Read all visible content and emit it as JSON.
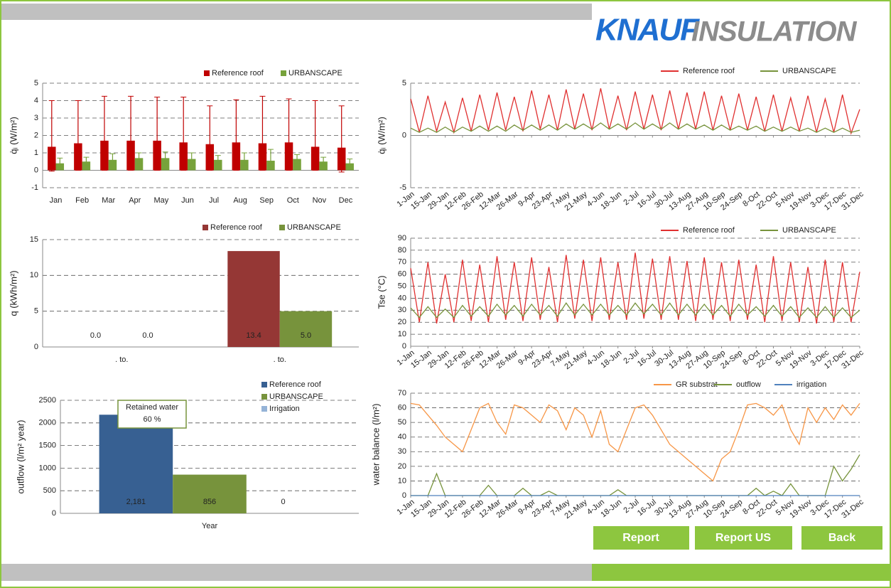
{
  "logo": {
    "brand": "KNAUF",
    "product": "INSULATION"
  },
  "buttons": [
    "Report",
    "Report US",
    "Back"
  ],
  "chart_data": [
    {
      "type": "bar",
      "y_label": "q̇ᵢ (W/m²)",
      "ylim": [
        -1,
        5
      ],
      "yticks": [
        -1,
        0,
        1,
        2,
        3,
        4,
        5
      ],
      "grid": true,
      "legend": "top-right",
      "categories": [
        "Jan",
        "Feb",
        "Mar",
        "Apr",
        "May",
        "Jun",
        "Jul",
        "Aug",
        "Sep",
        "Oct",
        "Nov",
        "Dec"
      ],
      "series": [
        {
          "name": "Reference roof",
          "color": "#c00000",
          "values": [
            1.35,
            1.55,
            1.7,
            1.7,
            1.7,
            1.6,
            1.5,
            1.6,
            1.55,
            1.6,
            1.35,
            1.3
          ],
          "err_plus": [
            2.65,
            2.45,
            2.55,
            2.55,
            2.5,
            2.6,
            2.2,
            2.45,
            2.7,
            2.5,
            2.65,
            2.4
          ],
          "err_minus": [
            1.4,
            1.55,
            1.7,
            1.7,
            1.7,
            1.6,
            1.5,
            1.6,
            1.55,
            1.6,
            1.35,
            1.4
          ]
        },
        {
          "name": "URBANSCAPE",
          "color": "#77a23b",
          "values": [
            0.4,
            0.5,
            0.6,
            0.7,
            0.7,
            0.65,
            0.6,
            0.6,
            0.55,
            0.65,
            0.5,
            0.4
          ],
          "err_plus": [
            0.3,
            0.25,
            0.35,
            0.3,
            0.35,
            0.35,
            0.25,
            0.4,
            0.65,
            0.25,
            0.25,
            0.25
          ],
          "err_minus": [
            0.2,
            0.2,
            0.25,
            0.3,
            0.3,
            0.25,
            0.2,
            0.3,
            0.35,
            0.25,
            0.2,
            0.2
          ]
        }
      ]
    },
    {
      "type": "bar",
      "y_label": "q (kWh/m²)",
      "ylim": [
        0,
        15
      ],
      "yticks": [
        0,
        5,
        10,
        15
      ],
      "grid": true,
      "legend": "top-right",
      "categories": [
        ". to.",
        ". to."
      ],
      "series": [
        {
          "name": "Reference roof",
          "color": "#953735",
          "values": [
            0.0,
            13.4
          ],
          "value_labels": [
            "0.0",
            "13.4"
          ]
        },
        {
          "name": "URBANSCAPE",
          "color": "#77933c",
          "values": [
            0.0,
            5.0
          ],
          "value_labels": [
            "0.0",
            "5.0"
          ]
        }
      ]
    },
    {
      "type": "bar",
      "y_label": "outflow (l/m² year)",
      "ylim": [
        0,
        2500
      ],
      "yticks": [
        0,
        500,
        1000,
        1500,
        2000,
        2500
      ],
      "grid": true,
      "legend": "right",
      "categories": [
        "Year"
      ],
      "annotation": {
        "title": "Retained water",
        "value": "60 %"
      },
      "series": [
        {
          "name": "Reference roof",
          "color": "#376092",
          "values": [
            2181
          ],
          "value_labels": [
            "2,181"
          ]
        },
        {
          "name": "URBANSCAPE",
          "color": "#77933c",
          "values": [
            856
          ],
          "value_labels": [
            "856"
          ]
        },
        {
          "name": "Irrigation",
          "color": "#95b3d7",
          "values": [
            0
          ],
          "value_labels": [
            "0"
          ]
        }
      ]
    },
    {
      "type": "line",
      "y_label": "q̇ᵢ (W/m²)",
      "ylim": [
        -5,
        5
      ],
      "yticks": [
        -5,
        0,
        5
      ],
      "grid": true,
      "legend": "top-right",
      "xlim": [
        1,
        365
      ],
      "xticks": [
        {
          "value": 1,
          "label": "1-Jan"
        },
        {
          "value": 15,
          "label": "15-Jan"
        },
        {
          "value": 29,
          "label": "29-Jan"
        },
        {
          "value": 43,
          "label": "12-Feb"
        },
        {
          "value": 57,
          "label": "26-Feb"
        },
        {
          "value": 71,
          "label": "12-Mar"
        },
        {
          "value": 85,
          "label": "26-Mar"
        },
        {
          "value": 99,
          "label": "9-Apr"
        },
        {
          "value": 113,
          "label": "23-Apr"
        },
        {
          "value": 127,
          "label": "7-May"
        },
        {
          "value": 141,
          "label": "21-May"
        },
        {
          "value": 155,
          "label": "4-Jun"
        },
        {
          "value": 169,
          "label": "18-Jun"
        },
        {
          "value": 183,
          "label": "2-Jul"
        },
        {
          "value": 197,
          "label": "16-Jul"
        },
        {
          "value": 211,
          "label": "30-Jul"
        },
        {
          "value": 225,
          "label": "13-Aug"
        },
        {
          "value": 239,
          "label": "27-Aug"
        },
        {
          "value": 253,
          "label": "10-Sep"
        },
        {
          "value": 267,
          "label": "24-Sep"
        },
        {
          "value": 281,
          "label": "8-Oct"
        },
        {
          "value": 295,
          "label": "22-Oct"
        },
        {
          "value": 309,
          "label": "5-Nov"
        },
        {
          "value": 323,
          "label": "19-Nov"
        },
        {
          "value": 337,
          "label": "3-Dec"
        },
        {
          "value": 351,
          "label": "17-Dec"
        },
        {
          "value": 365,
          "label": "31-Dec"
        }
      ],
      "x": [
        1,
        8,
        15,
        22,
        29,
        36,
        43,
        50,
        57,
        64,
        71,
        78,
        85,
        92,
        99,
        106,
        113,
        120,
        127,
        134,
        141,
        148,
        155,
        162,
        169,
        176,
        183,
        190,
        197,
        204,
        211,
        218,
        225,
        232,
        239,
        246,
        253,
        260,
        267,
        274,
        281,
        288,
        295,
        302,
        309,
        316,
        323,
        330,
        337,
        344,
        351,
        358,
        365
      ],
      "series": [
        {
          "name": "Reference roof",
          "color": "#e03030",
          "values": [
            3.5,
            0.3,
            3.8,
            0.4,
            3.2,
            0.3,
            3.6,
            0.4,
            3.9,
            0.5,
            4.1,
            0.5,
            3.7,
            0.4,
            4.3,
            0.6,
            3.9,
            0.5,
            4.4,
            0.6,
            4.0,
            0.5,
            4.5,
            0.6,
            3.8,
            0.5,
            4.2,
            0.6,
            3.9,
            0.5,
            4.3,
            0.6,
            4.1,
            0.6,
            4.2,
            0.5,
            3.8,
            0.5,
            4.0,
            0.5,
            3.7,
            0.4,
            3.9,
            0.4,
            3.6,
            0.4,
            3.8,
            0.3,
            3.5,
            0.3,
            3.9,
            0.2,
            2.5
          ]
        },
        {
          "name": "URBANSCAPE",
          "color": "#77933c",
          "values": [
            0.7,
            0.3,
            0.7,
            0.3,
            0.8,
            0.3,
            0.8,
            0.4,
            0.9,
            0.4,
            0.9,
            0.4,
            1.0,
            0.5,
            1.0,
            0.5,
            1.0,
            0.5,
            1.1,
            0.6,
            1.1,
            0.6,
            1.2,
            0.6,
            1.1,
            0.6,
            1.2,
            0.6,
            1.1,
            0.6,
            1.2,
            0.6,
            1.1,
            0.6,
            1.0,
            0.5,
            1.0,
            0.5,
            0.9,
            0.5,
            0.9,
            0.4,
            0.8,
            0.4,
            0.8,
            0.4,
            0.7,
            0.3,
            0.7,
            0.3,
            0.7,
            0.3,
            0.5
          ]
        }
      ]
    },
    {
      "type": "line",
      "y_label": "Tse (°C)",
      "ylim": [
        0,
        90
      ],
      "yticks": [
        0,
        10,
        20,
        30,
        40,
        50,
        60,
        70,
        80,
        90
      ],
      "grid": true,
      "legend": "top-right",
      "xlim": [
        1,
        365
      ],
      "xticks": [
        {
          "value": 1,
          "label": "1-Jan"
        },
        {
          "value": 15,
          "label": "15-Jan"
        },
        {
          "value": 29,
          "label": "29-Jan"
        },
        {
          "value": 43,
          "label": "12-Feb"
        },
        {
          "value": 57,
          "label": "26-Feb"
        },
        {
          "value": 71,
          "label": "12-Mar"
        },
        {
          "value": 85,
          "label": "26-Mar"
        },
        {
          "value": 99,
          "label": "9-Apr"
        },
        {
          "value": 113,
          "label": "23-Apr"
        },
        {
          "value": 127,
          "label": "7-May"
        },
        {
          "value": 141,
          "label": "21-May"
        },
        {
          "value": 155,
          "label": "4-Jun"
        },
        {
          "value": 169,
          "label": "18-Jun"
        },
        {
          "value": 183,
          "label": "2-Jul"
        },
        {
          "value": 197,
          "label": "16-Jul"
        },
        {
          "value": 211,
          "label": "30-Jul"
        },
        {
          "value": 225,
          "label": "13-Aug"
        },
        {
          "value": 239,
          "label": "27-Aug"
        },
        {
          "value": 253,
          "label": "10-Sep"
        },
        {
          "value": 267,
          "label": "24-Sep"
        },
        {
          "value": 281,
          "label": "8-Oct"
        },
        {
          "value": 295,
          "label": "22-Oct"
        },
        {
          "value": 309,
          "label": "5-Nov"
        },
        {
          "value": 323,
          "label": "19-Nov"
        },
        {
          "value": 337,
          "label": "3-Dec"
        },
        {
          "value": 351,
          "label": "17-Dec"
        },
        {
          "value": 365,
          "label": "31-Dec"
        }
      ],
      "x": [
        1,
        8,
        15,
        22,
        29,
        36,
        43,
        50,
        57,
        64,
        71,
        78,
        85,
        92,
        99,
        106,
        113,
        120,
        127,
        134,
        141,
        148,
        155,
        162,
        169,
        176,
        183,
        190,
        197,
        204,
        211,
        218,
        225,
        232,
        239,
        246,
        253,
        260,
        267,
        274,
        281,
        288,
        295,
        302,
        309,
        316,
        323,
        330,
        337,
        344,
        351,
        358,
        365
      ],
      "series": [
        {
          "name": "Reference roof",
          "color": "#e03030",
          "values": [
            65,
            20,
            70,
            19,
            60,
            20,
            72,
            21,
            68,
            20,
            75,
            22,
            70,
            21,
            74,
            22,
            66,
            20,
            76,
            23,
            72,
            21,
            74,
            22,
            70,
            22,
            78,
            23,
            73,
            22,
            75,
            22,
            71,
            21,
            74,
            22,
            70,
            21,
            72,
            22,
            68,
            20,
            75,
            21,
            70,
            20,
            66,
            19,
            72,
            20,
            70,
            20,
            62
          ]
        },
        {
          "name": "URBANSCAPE",
          "color": "#77933c",
          "values": [
            32,
            24,
            33,
            24,
            31,
            24,
            34,
            25,
            33,
            25,
            35,
            26,
            34,
            25,
            35,
            26,
            34,
            25,
            36,
            26,
            35,
            26,
            35,
            26,
            34,
            26,
            36,
            27,
            35,
            26,
            36,
            26,
            35,
            26,
            35,
            26,
            34,
            25,
            35,
            26,
            33,
            25,
            34,
            25,
            33,
            24,
            32,
            24,
            33,
            24,
            32,
            24,
            30
          ]
        }
      ]
    },
    {
      "type": "line",
      "y_label": "water balance (l/m²)",
      "ylim": [
        0,
        70
      ],
      "yticks": [
        0,
        10,
        20,
        30,
        40,
        50,
        60,
        70
      ],
      "grid": true,
      "legend": "top-right",
      "xlim": [
        1,
        365
      ],
      "xticks": [
        {
          "value": 1,
          "label": "1-Jan"
        },
        {
          "value": 15,
          "label": "15-Jan"
        },
        {
          "value": 29,
          "label": "29-Jan"
        },
        {
          "value": 43,
          "label": "12-Feb"
        },
        {
          "value": 57,
          "label": "26-Feb"
        },
        {
          "value": 71,
          "label": "12-Mar"
        },
        {
          "value": 85,
          "label": "26-Mar"
        },
        {
          "value": 99,
          "label": "9-Apr"
        },
        {
          "value": 113,
          "label": "23-Apr"
        },
        {
          "value": 127,
          "label": "7-May"
        },
        {
          "value": 141,
          "label": "21-May"
        },
        {
          "value": 155,
          "label": "4-Jun"
        },
        {
          "value": 169,
          "label": "18-Jun"
        },
        {
          "value": 183,
          "label": "2-Jul"
        },
        {
          "value": 197,
          "label": "16-Jul"
        },
        {
          "value": 211,
          "label": "30-Jul"
        },
        {
          "value": 225,
          "label": "13-Aug"
        },
        {
          "value": 239,
          "label": "27-Aug"
        },
        {
          "value": 253,
          "label": "10-Sep"
        },
        {
          "value": 267,
          "label": "24-Sep"
        },
        {
          "value": 281,
          "label": "8-Oct"
        },
        {
          "value": 295,
          "label": "22-Oct"
        },
        {
          "value": 309,
          "label": "5-Nov"
        },
        {
          "value": 323,
          "label": "19-Nov"
        },
        {
          "value": 337,
          "label": "3-Dec"
        },
        {
          "value": 351,
          "label": "17-Dec"
        },
        {
          "value": 365,
          "label": "31-Dec"
        }
      ],
      "x": [
        1,
        8,
        15,
        22,
        29,
        36,
        43,
        50,
        57,
        64,
        71,
        78,
        85,
        92,
        99,
        106,
        113,
        120,
        127,
        134,
        141,
        148,
        155,
        162,
        169,
        176,
        183,
        190,
        197,
        204,
        211,
        218,
        225,
        232,
        239,
        246,
        253,
        260,
        267,
        274,
        281,
        288,
        295,
        302,
        309,
        316,
        323,
        330,
        337,
        344,
        351,
        358,
        365
      ],
      "series": [
        {
          "name": "GR substrat",
          "color": "#f79646",
          "values": [
            63,
            62,
            55,
            48,
            40,
            35,
            30,
            45,
            60,
            63,
            50,
            42,
            62,
            60,
            55,
            50,
            62,
            58,
            45,
            60,
            55,
            40,
            58,
            35,
            30,
            45,
            60,
            62,
            55,
            45,
            35,
            30,
            25,
            20,
            15,
            10,
            25,
            30,
            45,
            62,
            63,
            60,
            55,
            62,
            45,
            35,
            60,
            50,
            60,
            52,
            62,
            55,
            63
          ]
        },
        {
          "name": "outflow",
          "color": "#77933c",
          "values": [
            0,
            0,
            0,
            15,
            0,
            0,
            0,
            0,
            0,
            7,
            0,
            0,
            0,
            5,
            0,
            0,
            3,
            0,
            0,
            0,
            0,
            0,
            0,
            0,
            4,
            0,
            0,
            0,
            0,
            0,
            0,
            0,
            0,
            0,
            0,
            0,
            0,
            0,
            0,
            0,
            5,
            0,
            3,
            0,
            8,
            0,
            0,
            0,
            0,
            20,
            10,
            18,
            28
          ]
        },
        {
          "name": "irrigation",
          "color": "#4f81bd",
          "values": [
            0,
            0,
            0,
            0,
            0,
            0,
            0,
            0,
            0,
            0,
            0,
            0,
            0,
            0,
            0,
            0,
            0,
            0,
            0,
            0,
            0,
            0,
            0,
            0,
            0,
            0,
            0,
            0,
            0,
            0,
            0,
            0,
            0,
            0,
            0,
            0,
            0,
            0,
            0,
            0,
            0,
            0,
            0,
            0,
            0,
            0,
            0,
            0,
            0,
            0,
            0,
            0,
            0
          ]
        }
      ]
    }
  ]
}
